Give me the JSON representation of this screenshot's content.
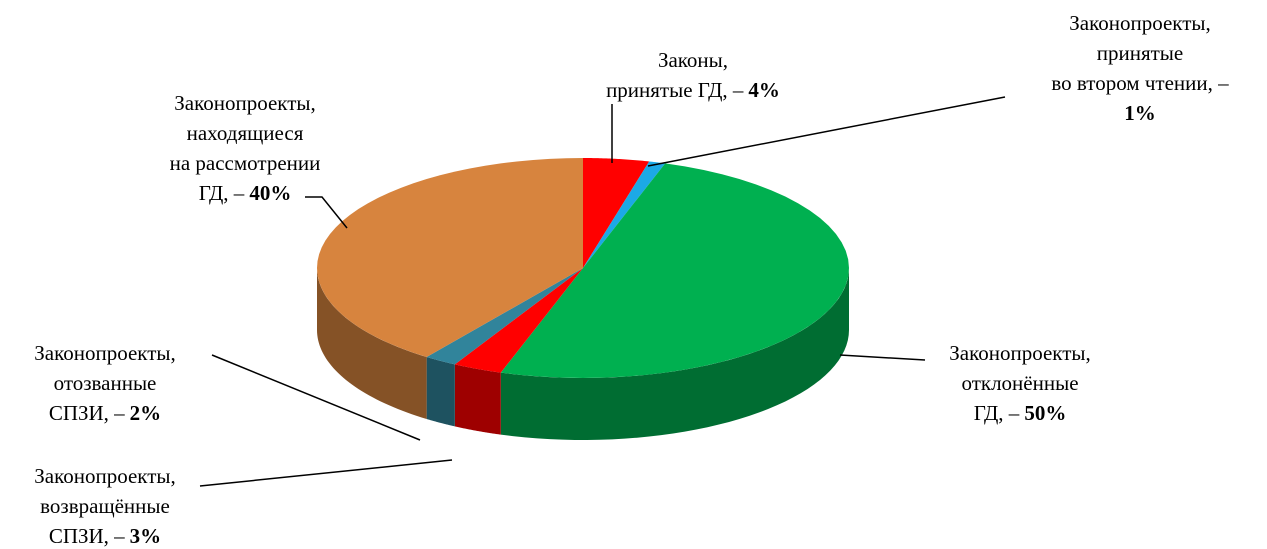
{
  "chart_data": {
    "type": "pie3d",
    "categories": [
      "Законы,\nпринятые ГД, –",
      "Законопроекты,\nпринятые\nво втором чтении, –",
      "Законопроекты,\nотклонённые\nГД, –",
      "Законопроекты,\nвозвращённые\nСПЗИ, –",
      "Законопроекты,\nотозванные\nСПЗИ, –",
      "Законопроекты,\nнаходящиеся\nна рассмотрении\nГД, –"
    ],
    "values": [
      4,
      1,
      50,
      3,
      2,
      40
    ],
    "value_labels": [
      "4%",
      "1%",
      "50%",
      "3%",
      "2%",
      "40%"
    ],
    "colors": [
      "#ff0000",
      "#1ca9e6",
      "#00b050",
      "#ff0000",
      "#31849b",
      "#d7843e"
    ]
  }
}
